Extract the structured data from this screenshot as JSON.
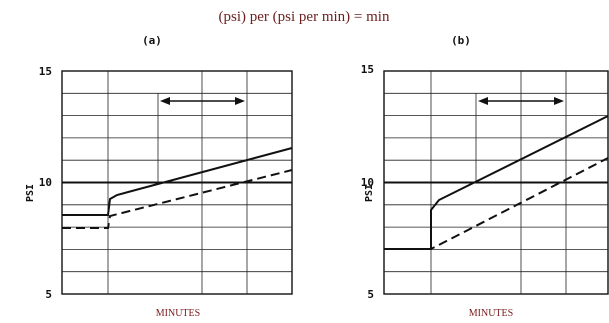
{
  "title": "(psi) per (psi per min) = min",
  "panels": [
    {
      "label": "(a)",
      "y_axis_label": "PSI",
      "y_ticks": [
        "15",
        "10",
        "5"
      ],
      "x_axis_label": "MINUTES"
    },
    {
      "label": "(b)",
      "y_axis_label": "PSI",
      "y_ticks": [
        "15",
        "10",
        "5"
      ],
      "x_axis_label": "MINUTES"
    }
  ]
}
